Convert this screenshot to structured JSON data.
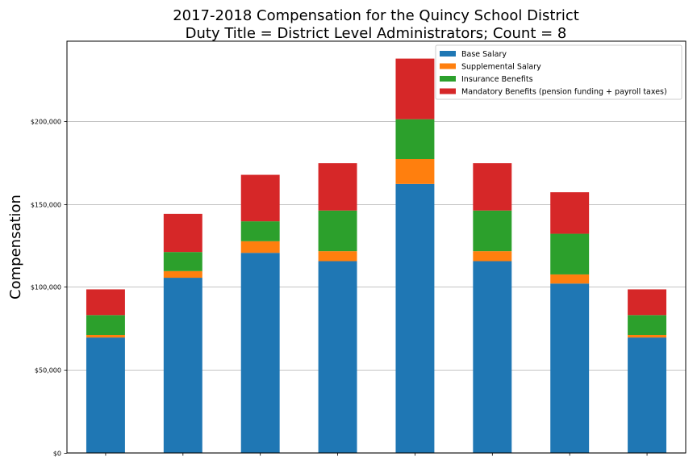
{
  "chart_data": {
    "type": "bar",
    "stacked": true,
    "title": "2017-2018 Compensation for the Quincy School District",
    "subtitle": "Duty Title = District Level Administrators; Count = 8",
    "xlabel": "",
    "ylabel": "Compensation",
    "ylim": [
      0,
      248000
    ],
    "yticks": [
      0,
      50000,
      100000,
      150000,
      200000
    ],
    "ytick_labels": [
      "$0",
      "$50,000",
      "$100,000",
      "$150,000",
      "$200,000"
    ],
    "grid": "y",
    "legend_position": "top-right",
    "categories": [
      "",
      "",
      "",
      "",
      "",
      "",
      "",
      ""
    ],
    "series": [
      {
        "name": "Base Salary",
        "color": "#1f77b4",
        "values": [
          69500,
          105500,
          120500,
          115500,
          162000,
          115500,
          102000,
          69500
        ]
      },
      {
        "name": "Supplemental Salary",
        "color": "#ff7f0e",
        "values": [
          1500,
          4000,
          7000,
          6000,
          15000,
          6000,
          5500,
          1500
        ]
      },
      {
        "name": "Insurance Benefits",
        "color": "#2ca02c",
        "values": [
          12000,
          11500,
          12000,
          24500,
          24000,
          24500,
          24500,
          12000
        ]
      },
      {
        "name": "Mandatory Benefits (pension funding + payroll taxes)",
        "color": "#d62728",
        "values": [
          15500,
          23000,
          28000,
          28500,
          36500,
          28500,
          25000,
          15500
        ]
      }
    ]
  }
}
